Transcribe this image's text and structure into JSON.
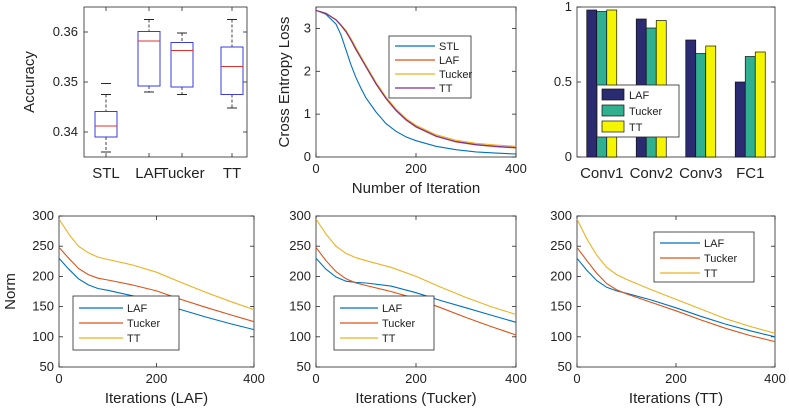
{
  "colors": {
    "blue": "#0072BD",
    "orange": "#D95319",
    "yellow": "#EDB120",
    "purple": "#7E2F8E",
    "navy": "#2B2B72",
    "teal": "#2FB08E",
    "bright_yellow": "#F5F500",
    "box": "#3B3BE0",
    "median": "#E03030",
    "whisker": "#111111"
  },
  "chart_data": [
    {
      "type": "box",
      "ylabel": "Accuracy",
      "categories": [
        "STL",
        "LAF",
        "Tucker",
        "TT"
      ],
      "ylim": [
        0.335,
        0.365
      ],
      "yticks": [
        "0.34",
        "0.35",
        "0.36"
      ],
      "boxes": [
        {
          "whisker_low": 0.336,
          "q1": 0.339,
          "median": 0.3412,
          "q3": 0.3441,
          "whisker_high": 0.3475,
          "outliers": [
            0.3497
          ]
        },
        {
          "whisker_low": 0.348,
          "q1": 0.3492,
          "median": 0.3582,
          "q3": 0.3601,
          "whisker_high": 0.3625,
          "outliers": []
        },
        {
          "whisker_low": 0.3475,
          "q1": 0.349,
          "median": 0.3563,
          "q3": 0.3579,
          "whisker_high": 0.3598,
          "outliers": []
        },
        {
          "whisker_low": 0.3448,
          "q1": 0.3475,
          "median": 0.3531,
          "q3": 0.357,
          "whisker_high": 0.3625,
          "outliers": []
        }
      ]
    },
    {
      "type": "line",
      "xlabel": "Number of Iteration",
      "ylabel": "Cross Entropy Loss",
      "xlim": [
        0,
        400
      ],
      "ylim": [
        0,
        3.5
      ],
      "xticks": [
        "0",
        "200",
        "400"
      ],
      "yticks": [
        "0",
        "1",
        "2",
        "3"
      ],
      "legend": "top-right",
      "x": [
        0,
        20,
        40,
        50,
        60,
        70,
        80,
        90,
        100,
        120,
        140,
        160,
        180,
        200,
        240,
        280,
        320,
        360,
        400
      ],
      "series": [
        {
          "name": "STL",
          "color": "blue",
          "values": [
            3.42,
            3.33,
            3.1,
            2.85,
            2.5,
            2.15,
            1.85,
            1.6,
            1.38,
            1.05,
            0.78,
            0.6,
            0.47,
            0.38,
            0.25,
            0.17,
            0.12,
            0.09,
            0.07
          ]
        },
        {
          "name": "LAF",
          "color": "orange",
          "values": [
            3.42,
            3.35,
            3.2,
            3.07,
            2.92,
            2.72,
            2.5,
            2.3,
            2.1,
            1.7,
            1.36,
            1.08,
            0.86,
            0.7,
            0.48,
            0.35,
            0.28,
            0.24,
            0.21
          ]
        },
        {
          "name": "Tucker",
          "color": "yellow",
          "values": [
            3.42,
            3.35,
            3.21,
            3.09,
            2.95,
            2.76,
            2.55,
            2.34,
            2.14,
            1.74,
            1.4,
            1.12,
            0.9,
            0.74,
            0.52,
            0.39,
            0.32,
            0.28,
            0.25
          ]
        },
        {
          "name": "TT",
          "color": "purple",
          "values": [
            3.42,
            3.35,
            3.2,
            3.07,
            2.93,
            2.73,
            2.51,
            2.31,
            2.11,
            1.71,
            1.37,
            1.09,
            0.87,
            0.71,
            0.49,
            0.36,
            0.29,
            0.25,
            0.22
          ]
        }
      ]
    },
    {
      "type": "bar",
      "categories": [
        "Conv1",
        "Conv2",
        "Conv3",
        "FC1"
      ],
      "ylim": [
        0,
        1
      ],
      "yticks": [
        "0",
        "0.5",
        "1"
      ],
      "legend": "middle-left",
      "series": [
        {
          "name": "LAF",
          "color": "navy",
          "values": [
            0.98,
            0.92,
            0.78,
            0.5
          ]
        },
        {
          "name": "Tucker",
          "color": "teal",
          "values": [
            0.97,
            0.86,
            0.69,
            0.67
          ]
        },
        {
          "name": "TT",
          "color": "bright_yellow",
          "values": [
            0.98,
            0.91,
            0.74,
            0.7
          ]
        }
      ]
    },
    {
      "type": "line",
      "xlabel": "Iterations (LAF)",
      "ylabel": "Norm",
      "xlim": [
        0,
        400
      ],
      "ylim": [
        50,
        300
      ],
      "xticks": [
        "0",
        "200",
        "400"
      ],
      "yticks": [
        "50",
        "100",
        "150",
        "200",
        "250",
        "300"
      ],
      "legend": "bottom-left",
      "x": [
        0,
        20,
        40,
        60,
        80,
        100,
        150,
        200,
        250,
        300,
        350,
        400
      ],
      "series": [
        {
          "name": "LAF",
          "color": "blue",
          "values": [
            230,
            212,
            196,
            186,
            180,
            177,
            168,
            158,
            145,
            133,
            122,
            112
          ]
        },
        {
          "name": "Tucker",
          "color": "orange",
          "values": [
            248,
            230,
            213,
            203,
            197,
            194,
            186,
            176,
            162,
            149,
            137,
            125
          ]
        },
        {
          "name": "TT",
          "color": "yellow",
          "values": [
            295,
            270,
            250,
            239,
            232,
            228,
            219,
            207,
            190,
            174,
            159,
            145
          ]
        }
      ]
    },
    {
      "type": "line",
      "xlabel": "Iterations (Tucker)",
      "xlim": [
        0,
        400
      ],
      "ylim": [
        50,
        300
      ],
      "xticks": [
        "0",
        "200",
        "400"
      ],
      "yticks": [
        "50",
        "100",
        "150",
        "200",
        "250",
        "300"
      ],
      "legend": "bottom-left",
      "x": [
        0,
        20,
        40,
        60,
        80,
        100,
        150,
        200,
        250,
        300,
        350,
        400
      ],
      "series": [
        {
          "name": "LAF",
          "color": "blue",
          "values": [
            230,
            212,
            199,
            192,
            190,
            189,
            184,
            173,
            160,
            148,
            136,
            124
          ]
        },
        {
          "name": "Tucker",
          "color": "orange",
          "values": [
            248,
            226,
            208,
            196,
            189,
            185,
            175,
            163,
            148,
            132,
            117,
            103
          ]
        },
        {
          "name": "TT",
          "color": "yellow",
          "values": [
            295,
            270,
            250,
            238,
            231,
            226,
            215,
            200,
            182,
            165,
            150,
            137
          ]
        }
      ]
    },
    {
      "type": "line",
      "xlabel": "Iterations (TT)",
      "xlim": [
        0,
        400
      ],
      "ylim": [
        50,
        300
      ],
      "xticks": [
        "0",
        "200",
        "400"
      ],
      "yticks": [
        "50",
        "100",
        "150",
        "200",
        "250",
        "300"
      ],
      "legend": "top-right",
      "x": [
        0,
        20,
        40,
        60,
        80,
        100,
        150,
        200,
        250,
        300,
        350,
        400
      ],
      "series": [
        {
          "name": "LAF",
          "color": "blue",
          "values": [
            230,
            210,
            193,
            182,
            176,
            172,
            161,
            148,
            134,
            121,
            110,
            100
          ]
        },
        {
          "name": "Tucker",
          "color": "orange",
          "values": [
            248,
            226,
            205,
            188,
            178,
            171,
            157,
            143,
            128,
            114,
            102,
            92
          ]
        },
        {
          "name": "TT",
          "color": "yellow",
          "values": [
            295,
            262,
            235,
            215,
            203,
            195,
            178,
            162,
            146,
            130,
            117,
            106
          ]
        }
      ]
    }
  ]
}
